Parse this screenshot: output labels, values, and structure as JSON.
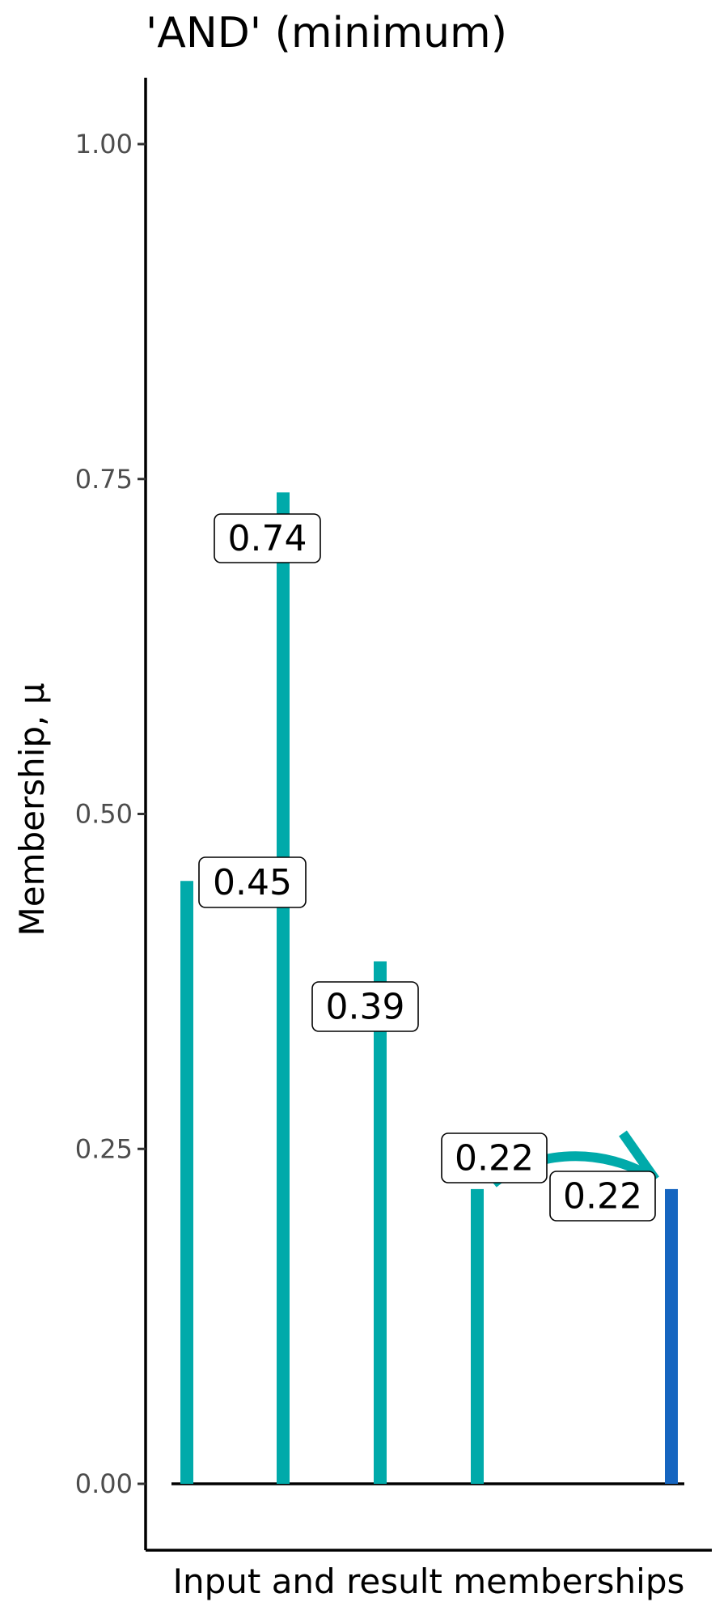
{
  "chart_data": {
    "type": "bar",
    "title": "'AND' (minimum)",
    "xlabel": "Input and result memberships",
    "ylabel": "Membership, μ",
    "ylim": [
      -0.05,
      1.0
    ],
    "yticks": [
      0.0,
      0.25,
      0.5,
      0.75,
      1.0
    ],
    "ytick_labels": [
      "0.00",
      "0.25",
      "0.50",
      "0.75",
      "1.00"
    ],
    "grid": false,
    "legend": "none",
    "series": [
      {
        "values": [
          0.45,
          0.74,
          0.39,
          0.22
        ],
        "labels": [
          "0.45",
          "0.74",
          "0.39",
          "0.22"
        ],
        "color": "#00AAAA"
      },
      {
        "values": [
          0.22
        ],
        "labels": [
          "0.22"
        ],
        "color": "#1565C0"
      }
    ],
    "annotation": {
      "type": "curved-arrow",
      "from": "input-4",
      "to": "result",
      "color": "#00AAAA"
    }
  }
}
